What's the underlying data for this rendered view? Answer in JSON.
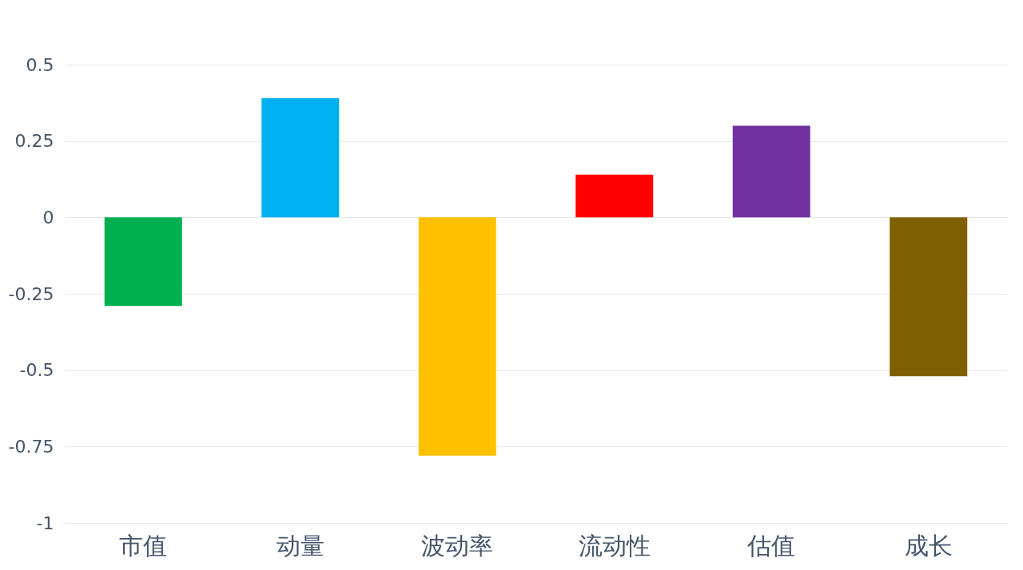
{
  "chart_data": {
    "type": "bar",
    "categories": [
      "市值",
      "动量",
      "波动率",
      "流动性",
      "估值",
      "成长"
    ],
    "values": [
      -0.29,
      0.39,
      -0.78,
      0.14,
      0.3,
      -0.52
    ],
    "colors": [
      "#00b050",
      "#00b0f0",
      "#ffc000",
      "#ff0000",
      "#7030a0",
      "#7f6000"
    ],
    "ylim": [
      -1,
      0.5
    ],
    "yticks": [
      -1,
      -0.75,
      -0.5,
      -0.25,
      0,
      0.25,
      0.5
    ],
    "grid": "y"
  }
}
